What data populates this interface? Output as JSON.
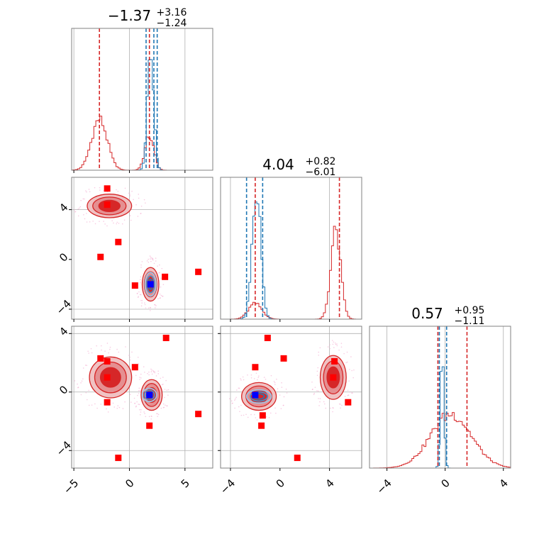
{
  "chart_data": {
    "type": "corner",
    "colors": {
      "red": "#d62728",
      "blue": "#1f77b4",
      "marker_blue": "#0000ff",
      "grid": "#b0b0b0",
      "frame": "#808080"
    },
    "parameters": [
      {
        "range": [
          -5.2,
          7.5
        ],
        "ticks": [
          -5,
          0,
          5
        ],
        "median": "−1.37",
        "plus": "+3.16",
        "minus": "−1.24",
        "red_lines": [
          -2.7,
          1.8
        ],
        "blue_lines": [
          1.5,
          2.2,
          2.5
        ],
        "grid": [
          -5,
          0,
          5
        ]
      },
      {
        "range": [
          -4.8,
          6.6
        ],
        "ticks": [
          -4,
          0,
          4
        ],
        "median": "4.04",
        "plus": "+0.82",
        "minus": "−6.01",
        "red_lines": [
          -2.0,
          4.8
        ],
        "blue_lines": [
          -2.7,
          -1.4
        ],
        "grid": [
          -4,
          4
        ]
      },
      {
        "range": [
          -5.2,
          4.5
        ],
        "ticks": [
          -4,
          0,
          4
        ],
        "median": "0.57",
        "plus": "+0.95",
        "minus": "−1.11",
        "red_lines": [
          -0.5,
          1.5
        ],
        "blue_lines": [
          -0.4,
          0.1
        ],
        "grid": [
          -4,
          0,
          4
        ]
      }
    ],
    "hist": {
      "p0": {
        "red": [
          {
            "m": -2.7,
            "s": 0.7,
            "a": 0.36
          },
          {
            "m": 1.8,
            "s": 0.4,
            "a": 0.24
          }
        ],
        "blue": [
          {
            "m": 1.9,
            "s": 0.28,
            "a": 0.84
          }
        ]
      },
      "p1": {
        "red": [
          {
            "m": -2.0,
            "s": 0.55,
            "a": 0.11
          },
          {
            "m": 4.5,
            "s": 0.4,
            "a": 0.62
          }
        ],
        "blue": [
          {
            "m": -1.9,
            "s": 0.35,
            "a": 0.92
          }
        ]
      },
      "p2": {
        "red": [
          {
            "m": 0.4,
            "s": 1.4,
            "a": 0.38
          }
        ],
        "blue": [
          {
            "m": -0.2,
            "s": 0.12,
            "a": 0.9
          }
        ]
      }
    },
    "blobs": {
      "p1_vs_p0": {
        "red": [
          {
            "x": -1.8,
            "y": 4.3,
            "sx": 2.0,
            "sy": 0.95
          },
          {
            "x": 1.9,
            "y": -2.0,
            "sx": 0.75,
            "sy": 1.35
          }
        ],
        "blue": [
          {
            "x": 1.9,
            "y": -2.0,
            "sx": 0.5,
            "sy": 0.95
          }
        ]
      },
      "p2_vs_p0": {
        "red": [
          {
            "x": -1.7,
            "y": 1.0,
            "sx": 1.9,
            "sy": 1.4
          },
          {
            "x": 2.0,
            "y": -0.2,
            "sx": 0.95,
            "sy": 1.05
          }
        ],
        "blue": [
          {
            "x": 1.8,
            "y": -0.2,
            "sx": 0.65,
            "sy": 0.45
          }
        ]
      },
      "p2_vs_p1": {
        "red": [
          {
            "x": -1.7,
            "y": -0.3,
            "sx": 1.4,
            "sy": 0.95
          },
          {
            "x": 4.3,
            "y": 1.0,
            "sx": 1.05,
            "sy": 1.5
          }
        ],
        "blue": [
          {
            "x": -1.7,
            "y": -0.3,
            "sx": 1.0,
            "sy": 0.45
          }
        ]
      }
    },
    "red_markers": {
      "p1_vs_p0": [
        [
          -2.0,
          5.7
        ],
        [
          -2.0,
          4.4
        ],
        [
          -1.0,
          1.4
        ],
        [
          -2.6,
          0.2
        ],
        [
          0.5,
          -2.1
        ],
        [
          3.2,
          -1.4
        ],
        [
          6.2,
          -1.0
        ],
        [
          1.9,
          -2.0
        ]
      ],
      "p2_vs_p0": [
        [
          -2.6,
          2.3
        ],
        [
          -2.0,
          2.1
        ],
        [
          0.5,
          1.7
        ],
        [
          -2.0,
          1.0
        ],
        [
          3.3,
          3.7
        ],
        [
          -2.0,
          -0.7
        ],
        [
          1.8,
          -2.3
        ],
        [
          6.2,
          -1.5
        ],
        [
          -1.0,
          -4.5
        ]
      ],
      "p2_vs_p1": [
        [
          -1.0,
          3.7
        ],
        [
          0.3,
          2.3
        ],
        [
          -2.0,
          1.7
        ],
        [
          4.4,
          2.1
        ],
        [
          4.3,
          1.0
        ],
        [
          5.5,
          -0.7
        ],
        [
          -1.4,
          -1.6
        ],
        [
          -1.5,
          -2.3
        ],
        [
          1.4,
          -4.5
        ]
      ]
    },
    "blue_markers": {
      "p1_vs_p0": [
        [
          1.9,
          -2.0
        ]
      ],
      "p2_vs_p0": [
        [
          1.8,
          -0.2
        ]
      ],
      "p2_vs_p1": [
        [
          -2.0,
          -0.2
        ]
      ]
    }
  }
}
